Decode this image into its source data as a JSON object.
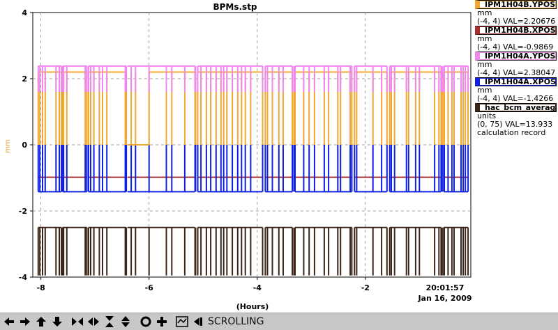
{
  "chart_data": {
    "type": "line",
    "title": "BPMs.stp",
    "xlabel": "(Hours)",
    "ylabel": "mm",
    "xlim": [
      -8.15,
      -0.05
    ],
    "ylim": [
      -4,
      4
    ],
    "x_ticks": [
      -8,
      -6,
      -4,
      -2
    ],
    "x_tick_labels": [
      "-8",
      "-6",
      "-4",
      "-2"
    ],
    "y_ticks": [
      -4,
      -2,
      0,
      2,
      4
    ],
    "y_tick_labels": [
      "-4",
      "-2",
      "0",
      "2",
      "4"
    ],
    "grid": true,
    "time_label": "20:01:57",
    "date_label": "Jan 16, 2009",
    "gap_segments": [
      [
        -8.05,
        -7.62
      ],
      [
        -7.6,
        -7.15
      ],
      [
        -7.12,
        -6.42
      ],
      [
        -6.0,
        -5.15
      ],
      [
        -5.1,
        -3.9
      ],
      [
        -3.85,
        -3.35
      ],
      [
        -3.3,
        -2.25
      ],
      [
        -2.2,
        -1.6
      ],
      [
        -1.55,
        -0.6
      ],
      [
        -0.55,
        -0.1
      ]
    ],
    "dropout_times": [
      -8.02,
      -7.97,
      -7.92,
      -7.72,
      -7.66,
      -7.58,
      -7.52,
      -7.18,
      -7.08,
      -7.02,
      -6.92,
      -6.86,
      -6.78,
      -6.44,
      -6.33,
      -6.25,
      -5.68,
      -5.58,
      -5.34,
      -5.14,
      -5.04,
      -4.94,
      -4.86,
      -4.76,
      -4.67,
      -4.62,
      -4.56,
      -4.46,
      -4.36,
      -4.29,
      -4.22,
      -4.12,
      -3.9,
      -3.81,
      -3.72,
      -3.6,
      -3.52,
      -3.32,
      -3.14,
      -3.04,
      -2.94,
      -2.76,
      -2.68,
      -2.51,
      -2.46,
      -2.28,
      -2.16,
      -1.86,
      -1.7,
      -1.6,
      -1.52,
      -1.46,
      -1.24,
      -1.2,
      -1.07,
      -1.0,
      -0.72,
      -0.64,
      -0.58,
      -0.54,
      -0.47,
      -0.4,
      -0.36,
      -0.23,
      -0.19,
      -0.15
    ],
    "flat_segment": [
      -6.4,
      -6.0
    ],
    "series": [
      {
        "name": "IPM1H04B.YPOS",
        "color": "#f0a830",
        "base": 2.2,
        "dropout_value": 0.0,
        "flat_value": 0.0,
        "range_text": "(-4, 4) VAL=2.20676",
        "units": "mm"
      },
      {
        "name": "IPM1H04B.XPOS",
        "color": "#a83030",
        "base": -0.98,
        "dropout_value": -0.98,
        "flat_value": -0.98,
        "range_text": "(-4, 4) VAL=-0.9869",
        "units": "mm"
      },
      {
        "name": "IPM1H04A.YPOS",
        "color": "#ee88ee",
        "base": 2.38,
        "dropout_value": 1.6,
        "flat_value": 2.38,
        "range_text": "(-4, 4) VAL=2.38047",
        "units": "mm"
      },
      {
        "name": "IPM1H04A.XPOS",
        "color": "#1020e0",
        "base": -1.42,
        "dropout_value": 0.0,
        "flat_value": -1.42,
        "range_text": "(-4, 4) VAL=-1.4266",
        "units": "mm"
      },
      {
        "name": "hac_bcm_average",
        "color": "#3a2418",
        "base": -2.5,
        "dropout_value": -3.95,
        "flat_value": -2.5,
        "range_text": "(0, 75) VAL=13.933",
        "units": "units",
        "note": "calculation record"
      }
    ]
  },
  "toolbar": {
    "status": "SCROLLING",
    "icons": [
      "arrow-left-icon",
      "arrow-right-icon",
      "arrow-up-icon",
      "arrow-down-icon",
      "zoom-in-x-icon",
      "zoom-out-x-icon",
      "zoom-in-y-icon",
      "zoom-out-y-icon",
      "config-icon",
      "add-icon",
      "autoscale-icon",
      "scroll-back-icon"
    ]
  }
}
